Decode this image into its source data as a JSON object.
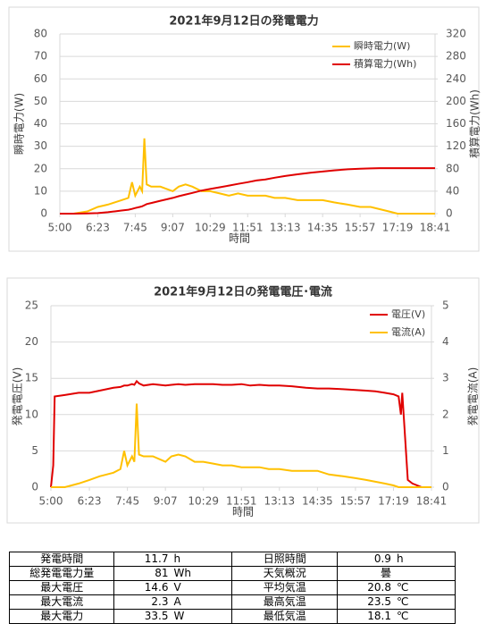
{
  "chart_data": [
    {
      "type": "line",
      "title": "2021年9月12日の発電電力",
      "x_label": "時間",
      "y_label": "瞬時電力(W)",
      "y2_label": "積算電力(Wh)",
      "x": [
        "5:00",
        "5:30",
        "6:00",
        "6:23",
        "6:45",
        "7:00",
        "7:15",
        "7:30",
        "7:38",
        "7:45",
        "7:55",
        "8:00",
        "8:05",
        "8:10",
        "8:20",
        "8:40",
        "9:07",
        "9:20",
        "9:35",
        "9:50",
        "10:10",
        "10:29",
        "10:50",
        "11:10",
        "11:30",
        "11:51",
        "12:10",
        "12:30",
        "12:50",
        "13:13",
        "13:40",
        "14:10",
        "14:35",
        "15:00",
        "15:30",
        "15:57",
        "16:20",
        "16:40",
        "17:00",
        "17:19",
        "17:40",
        "18:00",
        "18:20",
        "18:41"
      ],
      "xlim": [
        "5:00",
        "18:41"
      ],
      "xticks": [
        "5:00",
        "6:23",
        "7:45",
        "9:07",
        "10:29",
        "11:51",
        "13:13",
        "14:35",
        "15:57",
        "17:19",
        "18:41"
      ],
      "ylim": [
        0,
        80
      ],
      "yticks": [
        0,
        10,
        20,
        30,
        40,
        50,
        60,
        70,
        80
      ],
      "y2lim": [
        0,
        320
      ],
      "y2ticks": [
        0,
        40,
        80,
        120,
        160,
        200,
        240,
        280,
        320
      ],
      "grid": true,
      "legend": "upper right",
      "series": [
        {
          "name": "瞬時電力(W)",
          "color": "#ffc000",
          "axis": "y",
          "values": [
            0,
            0,
            1,
            3,
            4,
            5,
            6,
            7,
            14,
            8,
            12,
            10,
            33.5,
            13,
            12,
            12,
            10,
            12,
            13,
            12,
            10,
            10,
            9,
            8,
            9,
            8,
            8,
            8,
            7,
            7,
            6,
            6,
            6,
            5,
            4,
            3,
            3,
            2,
            1,
            0,
            0,
            0,
            0,
            0
          ]
        },
        {
          "name": "積算電力(Wh)",
          "color": "#e00000",
          "axis": "y2",
          "values": [
            0,
            0,
            0.3,
            1,
            2.5,
            4,
            5.5,
            7,
            8.5,
            10,
            12,
            13,
            15,
            17,
            19,
            23,
            28,
            31,
            34,
            37,
            41,
            44,
            47,
            50,
            53,
            56,
            59,
            61,
            64,
            67,
            70,
            73,
            75,
            77,
            79,
            80,
            80.5,
            81,
            81,
            81,
            81,
            81,
            81,
            81
          ]
        }
      ]
    },
    {
      "type": "line",
      "title": "2021年9月12日の発電電圧･電流",
      "x_label": "時間",
      "y_label": "発電電圧(V)",
      "y2_label": "発電電流(A)",
      "x": [
        "5:00",
        "5:05",
        "5:08",
        "5:30",
        "6:00",
        "6:23",
        "6:45",
        "7:00",
        "7:15",
        "7:30",
        "7:38",
        "7:45",
        "7:55",
        "8:00",
        "8:05",
        "8:10",
        "8:20",
        "8:40",
        "9:07",
        "9:20",
        "9:35",
        "9:50",
        "10:10",
        "10:29",
        "10:50",
        "11:10",
        "11:30",
        "11:51",
        "12:10",
        "12:30",
        "12:50",
        "13:13",
        "13:40",
        "14:10",
        "14:35",
        "15:00",
        "15:30",
        "15:57",
        "16:20",
        "16:40",
        "17:00",
        "17:19",
        "17:30",
        "17:35",
        "17:38",
        "17:50",
        "18:00",
        "18:20",
        "18:41"
      ],
      "xlim": [
        "5:00",
        "18:41"
      ],
      "xticks": [
        "5:00",
        "6:23",
        "7:45",
        "9:07",
        "10:29",
        "11:51",
        "13:13",
        "14:35",
        "15:57",
        "17:19",
        "18:41"
      ],
      "ylim": [
        0,
        25
      ],
      "yticks": [
        0,
        5,
        10,
        15,
        20,
        25
      ],
      "y2lim": [
        0,
        5
      ],
      "y2ticks": [
        0,
        1,
        2,
        3,
        4,
        5
      ],
      "grid": true,
      "legend": "upper right",
      "series": [
        {
          "name": "電圧(V)",
          "color": "#e00000",
          "axis": "y",
          "values": [
            0,
            3,
            12.5,
            12.7,
            13,
            13,
            13.3,
            13.5,
            13.7,
            13.8,
            14,
            14,
            14.2,
            14.1,
            14.6,
            14.3,
            14,
            14.2,
            14,
            14.1,
            14.2,
            14.1,
            14.2,
            14.2,
            14.2,
            14.1,
            14.1,
            14.2,
            14,
            14.1,
            14,
            14,
            13.9,
            13.7,
            13.6,
            13.6,
            13.5,
            13.4,
            13.3,
            13.2,
            13,
            12.8,
            12.5,
            10,
            13,
            1,
            0.5,
            0,
            0
          ]
        },
        {
          "name": "電流(A)",
          "color": "#ffc000",
          "axis": "y2",
          "values": [
            0,
            0,
            0,
            0,
            0.1,
            0.2,
            0.3,
            0.35,
            0.4,
            0.5,
            1,
            0.6,
            0.85,
            0.7,
            2.3,
            0.9,
            0.85,
            0.85,
            0.7,
            0.85,
            0.9,
            0.85,
            0.7,
            0.7,
            0.65,
            0.6,
            0.6,
            0.55,
            0.55,
            0.55,
            0.5,
            0.5,
            0.45,
            0.45,
            0.45,
            0.35,
            0.3,
            0.25,
            0.2,
            0.15,
            0.1,
            0.05,
            0,
            0,
            0,
            0,
            0,
            0,
            0
          ]
        }
      ]
    }
  ],
  "table": {
    "rows": [
      [
        {
          "label": "発電時間",
          "value": 11.7,
          "unit": "h"
        },
        {
          "label": "日照時間",
          "value": 0.9,
          "unit": "h"
        }
      ],
      [
        {
          "label": "総発電電力量",
          "value": 81,
          "unit": "Wh"
        },
        {
          "label": "天気概況",
          "value": "曇"
        }
      ],
      [
        {
          "label": "最大電圧",
          "value": 14.6,
          "unit": "V"
        },
        {
          "label": "平均気温",
          "value": 20.8,
          "unit": "℃"
        }
      ],
      [
        {
          "label": "最大電流",
          "value": 2.3,
          "unit": "A"
        },
        {
          "label": "最高気温",
          "value": 23.5,
          "unit": "℃"
        }
      ],
      [
        {
          "label": "最大電力",
          "value": 33.5,
          "unit": "W"
        },
        {
          "label": "最低気温",
          "value": 18.1,
          "unit": "℃"
        }
      ]
    ]
  }
}
